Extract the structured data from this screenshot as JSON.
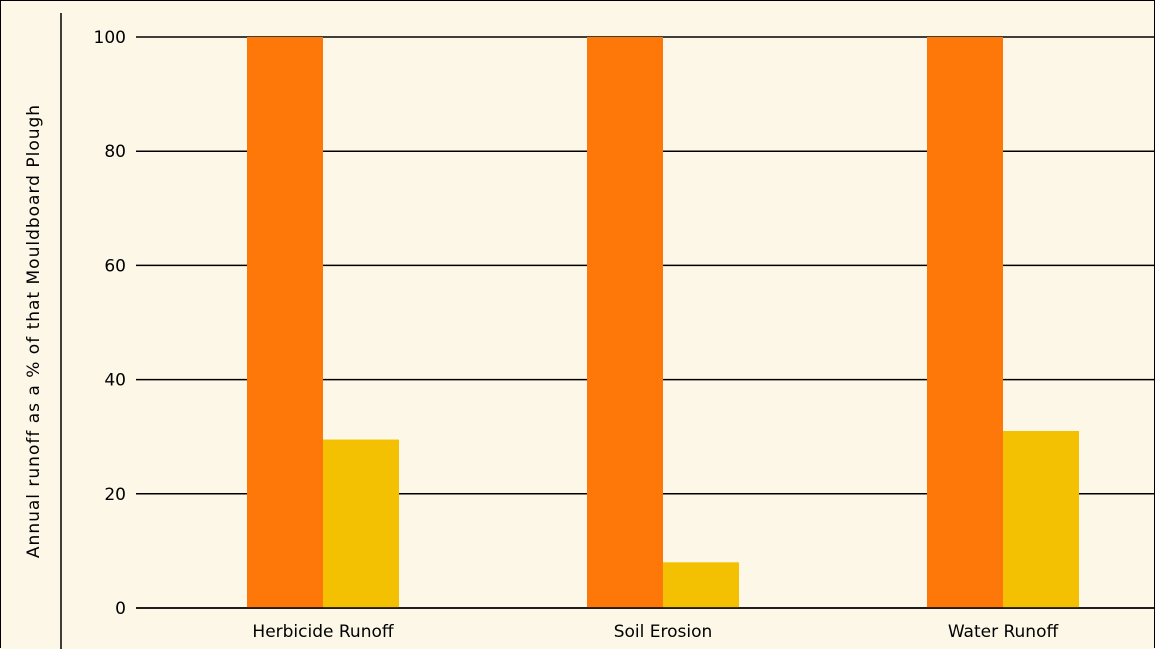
{
  "chart_data": {
    "type": "bar",
    "title": "",
    "xlabel": "",
    "ylabel": "Annual runoff as a % of that Mouldboard Plough",
    "categories": [
      "Herbicide Runoff",
      "Soil Erosion",
      "Water Runoff"
    ],
    "series": [
      {
        "values": [
          100,
          100,
          100
        ],
        "color": "#fd7709"
      },
      {
        "values": [
          29.5,
          8,
          31
        ],
        "color": "#f3c102"
      }
    ],
    "ylim": [
      0,
      100
    ],
    "yticks": [
      0,
      20,
      40,
      60,
      80,
      100
    ],
    "grid": true,
    "legend": "none"
  }
}
